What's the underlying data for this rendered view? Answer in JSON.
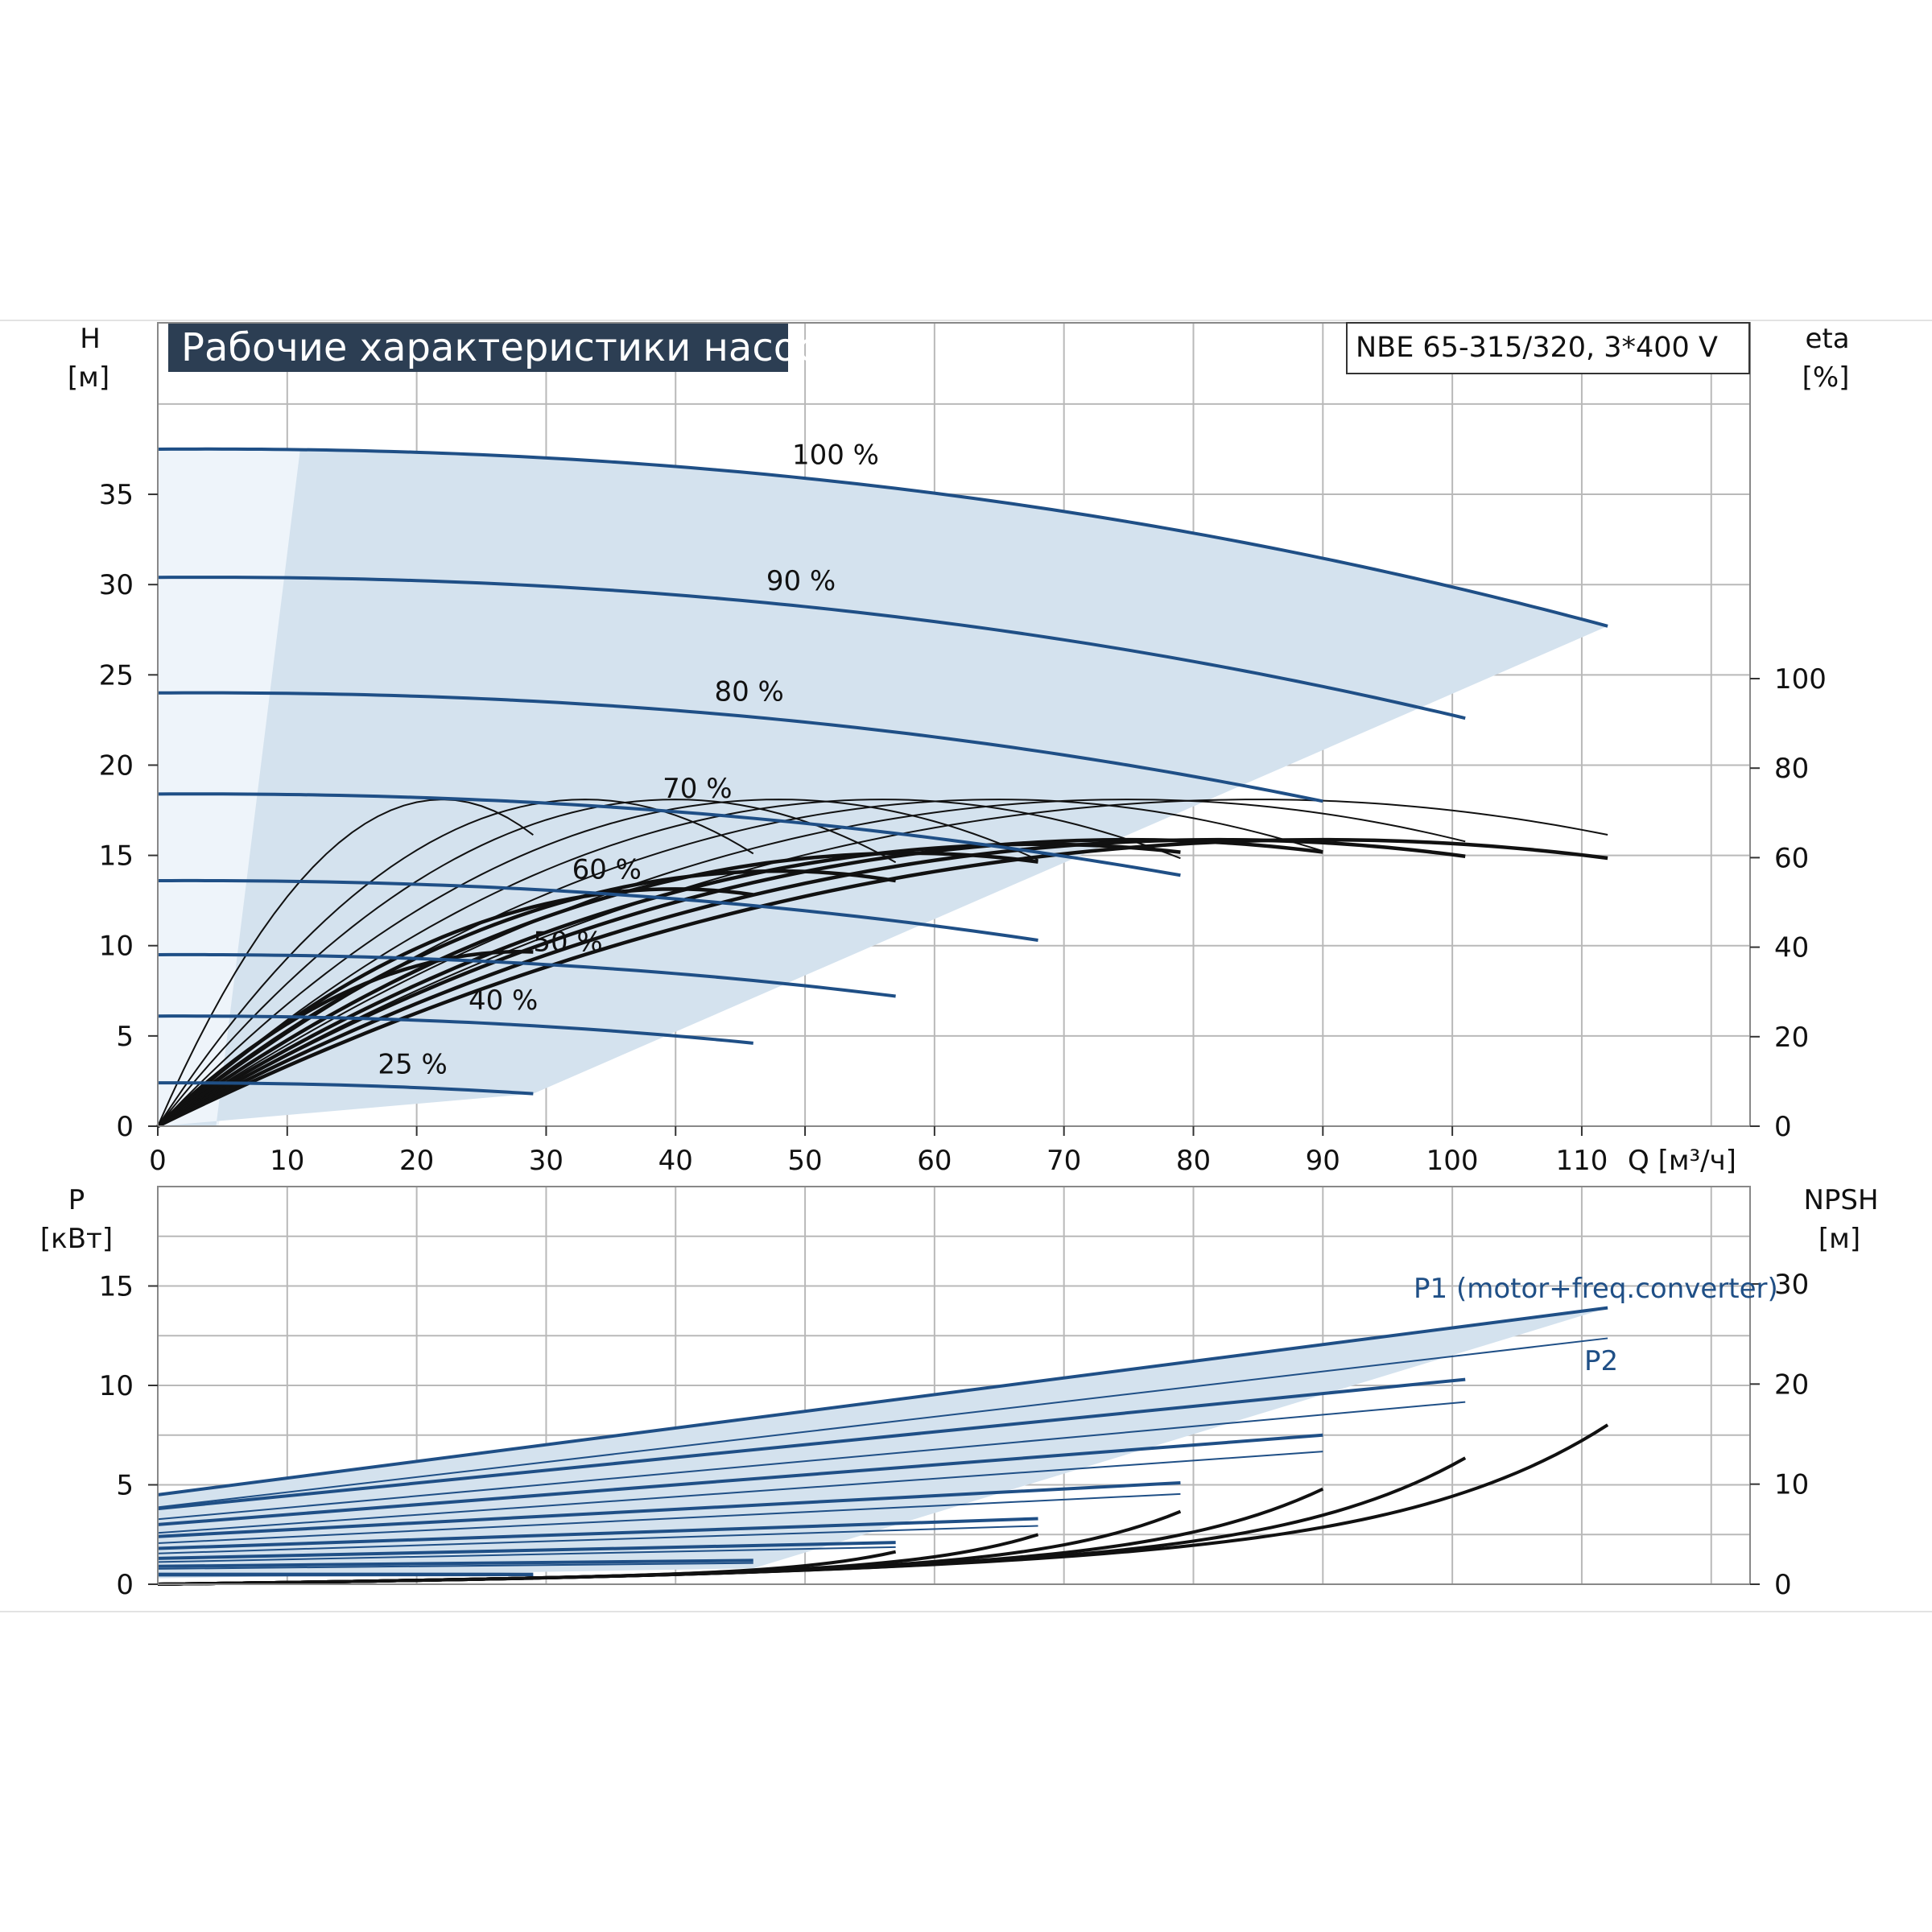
{
  "chart_data": {
    "type": "line",
    "title": "Рабочие характеристики насоса",
    "model": "NBE 65-315/320, 3*400 V",
    "colors": {
      "curve": "#1f4f86",
      "envelope": "#d4e2ee",
      "envelope_light": "#eef4fa",
      "efficiency": "#111111",
      "grid": "#b9b9b9"
    },
    "q_axis": {
      "label": "Q [м³/ч]",
      "range": [
        0,
        123
      ],
      "ticks": [
        0,
        10,
        20,
        30,
        40,
        50,
        60,
        70,
        80,
        90,
        100,
        110
      ]
    },
    "head_chart": {
      "ylabel_top": "H",
      "ylabel_bottom": "[м]",
      "yrange": [
        0,
        44.5
      ],
      "ticks": [
        0,
        5,
        10,
        15,
        20,
        25,
        30,
        35
      ],
      "eta_label_top": "eta",
      "eta_label_bottom": "[%]",
      "eta_ticks": [
        0,
        20,
        40,
        60,
        80,
        100
      ],
      "speed_curves": [
        {
          "name": "100 %",
          "h0": 37.5,
          "qmax": 112,
          "hend": 27.7
        },
        {
          "name": "90 %",
          "h0": 30.4,
          "qmax": 101,
          "hend": 22.6
        },
        {
          "name": "80 %",
          "h0": 24.0,
          "qmax": 90,
          "hend": 18.0
        },
        {
          "name": "70 %",
          "h0": 18.4,
          "qmax": 79,
          "hend": 13.9
        },
        {
          "name": "60 %",
          "h0": 13.6,
          "qmax": 68,
          "hend": 10.3
        },
        {
          "name": "50 %",
          "h0": 9.5,
          "qmax": 57,
          "hend": 7.2
        },
        {
          "name": "40 %",
          "h0": 6.1,
          "qmax": 46,
          "hend": 4.6
        },
        {
          "name": "25 %",
          "h0": 2.4,
          "qmax": 29,
          "hend": 1.8
        }
      ]
    },
    "power_chart": {
      "ylabel_top": "P",
      "ylabel_bottom": "[кВт]",
      "yrange": [
        0,
        20
      ],
      "ticks": [
        0,
        5,
        10,
        15
      ],
      "npsh_label_top": "NPSH",
      "npsh_label_bottom": "[м]",
      "npsh_ticks": [
        0,
        10,
        20,
        30
      ],
      "series": [
        {
          "name": "P1 (motor+freq.converter)",
          "p0": 4.5,
          "qmax": 112,
          "pend": 13.9
        },
        {
          "name": "P2",
          "p0": 3.9,
          "qmax": 112,
          "pend": 12.4
        }
      ]
    }
  }
}
